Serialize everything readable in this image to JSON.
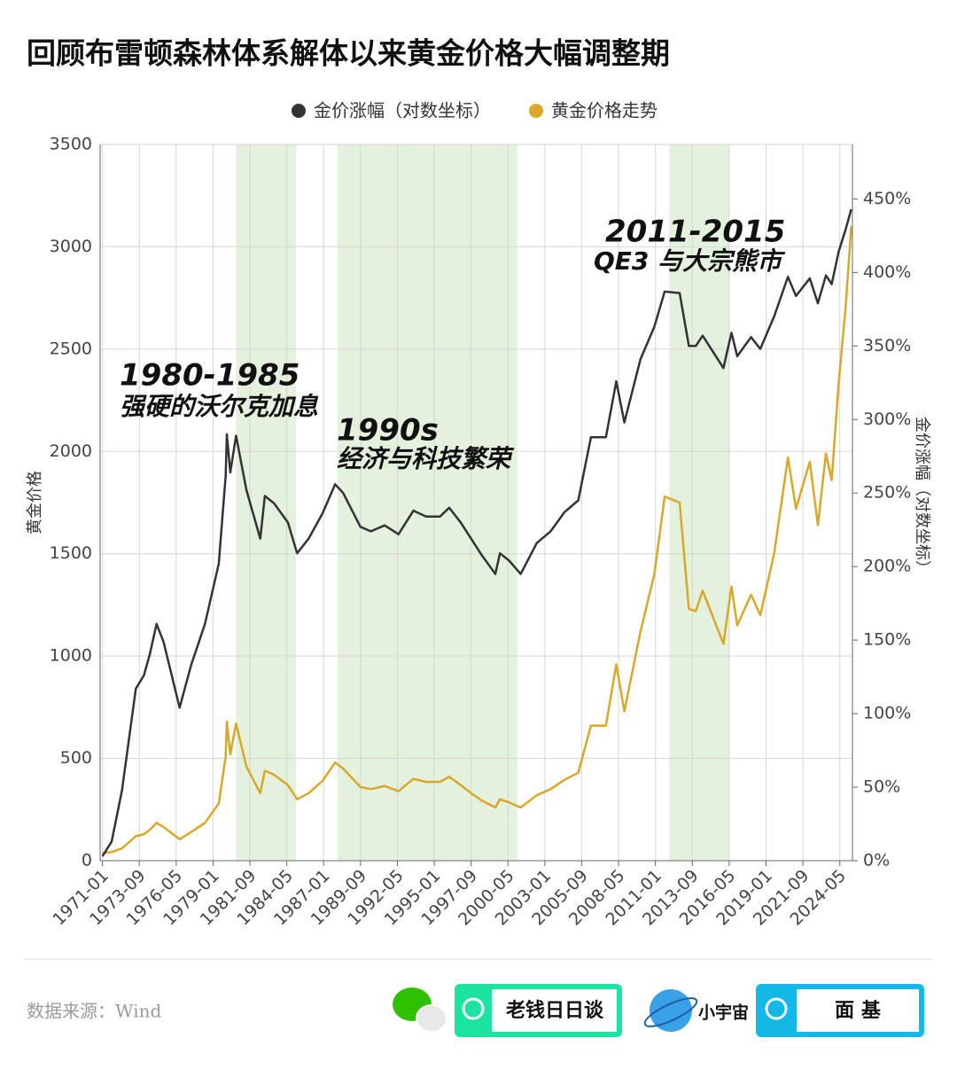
{
  "chart_data": {
    "type": "line",
    "title": "回顾布雷顿森林体系解体以来黄金价格大幅调整期",
    "ylabel": "黄金价格",
    "y2label": "金价涨幅（对数坐标）",
    "x": [
      "1971-01",
      "1971-09",
      "1972-06",
      "1973-06",
      "1974-01",
      "1974-06",
      "1974-12",
      "1975-06",
      "1976-08",
      "1977-06",
      "1978-06",
      "1979-06",
      "1979-12",
      "1980-01",
      "1980-04",
      "1980-09",
      "1981-06",
      "1982-06",
      "1982-10",
      "1983-06",
      "1984-06",
      "1985-02",
      "1985-12",
      "1986-12",
      "1987-11",
      "1988-06",
      "1989-09",
      "1990-06",
      "1991-06",
      "1992-06",
      "1993-07",
      "1994-06",
      "1995-06",
      "1996-02",
      "1996-12",
      "1997-09",
      "1998-06",
      "1999-06",
      "1999-10",
      "2000-06",
      "2001-04",
      "2002-06",
      "2003-06",
      "2004-06",
      "2005-06",
      "2006-05",
      "2007-06",
      "2008-03",
      "2008-10",
      "2009-12",
      "2010-12",
      "2011-09",
      "2012-10",
      "2013-06",
      "2013-12",
      "2014-06",
      "2015-12",
      "2016-07",
      "2016-12",
      "2017-12",
      "2018-08",
      "2019-08",
      "2020-08",
      "2021-03",
      "2022-03",
      "2022-10",
      "2023-05",
      "2023-10",
      "2024-04",
      "2024-10",
      "2025-03"
    ],
    "series": [
      {
        "name": "金价涨幅（对数坐标）",
        "color": "#333333",
        "axis": "y2",
        "values": [
          3,
          13,
          48,
          117,
          126,
          140,
          161,
          149,
          104,
          133,
          161,
          202,
          262,
          290,
          264,
          289,
          252,
          219,
          248,
          243,
          230,
          209,
          219,
          236,
          256,
          250,
          227,
          224,
          228,
          222,
          238,
          234,
          234,
          240,
          230,
          219,
          208,
          195,
          209,
          204,
          195,
          216,
          224,
          237,
          245,
          288,
          288,
          326,
          298,
          341,
          363,
          387,
          386,
          350,
          350,
          357,
          335,
          359,
          343,
          356,
          348,
          370,
          397,
          384,
          396,
          379,
          398,
          392,
          414,
          429,
          443
        ]
      },
      {
        "name": "黄金价格走势",
        "color": "#d9a82b",
        "values": [
          38,
          42,
          60,
          120,
          130,
          150,
          185,
          165,
          105,
          140,
          185,
          280,
          510,
          680,
          520,
          670,
          460,
          330,
          440,
          420,
          370,
          300,
          330,
          390,
          480,
          450,
          360,
          350,
          365,
          340,
          400,
          385,
          385,
          410,
          370,
          330,
          295,
          260,
          300,
          285,
          260,
          320,
          350,
          395,
          430,
          660,
          660,
          960,
          730,
          1120,
          1400,
          1780,
          1750,
          1230,
          1220,
          1320,
          1060,
          1340,
          1150,
          1300,
          1200,
          1500,
          1970,
          1720,
          1950,
          1640,
          1990,
          1860,
          2330,
          2700,
          3100
        ]
      }
    ],
    "xlim": [
      "1970-11",
      "2025-04"
    ],
    "xticks": [
      "1971-01",
      "1973-09",
      "1976-05",
      "1979-01",
      "1981-09",
      "1984-05",
      "1987-01",
      "1989-09",
      "1992-05",
      "1995-01",
      "1997-09",
      "2000-05",
      "2003-01",
      "2005-09",
      "2008-05",
      "2011-01",
      "2013-09",
      "2016-05",
      "2019-01",
      "2021-09",
      "2024-05"
    ],
    "ylim": [
      0,
      3500
    ],
    "yticks": [
      0,
      500,
      1000,
      1500,
      2000,
      2500,
      3000,
      3500
    ],
    "y2lim": [
      0,
      487
    ],
    "y2ticks": [
      {
        "value": 0,
        "label": "0%"
      },
      {
        "value": 50,
        "label": "50%"
      },
      {
        "value": 100,
        "label": "100%"
      },
      {
        "value": 150,
        "label": "150%"
      },
      {
        "value": 200,
        "label": "200%"
      },
      {
        "value": 250,
        "label": "250%"
      },
      {
        "value": 300,
        "label": "300%"
      },
      {
        "value": 350,
        "label": "350%"
      },
      {
        "value": 400,
        "label": "400%"
      },
      {
        "value": 450,
        "label": "450%"
      }
    ],
    "grid": true,
    "legend": "top",
    "shaded_periods": [
      [
        "1980-09",
        "1985-01"
      ],
      [
        "1988-01",
        "2001-01"
      ],
      [
        "2012-01",
        "2016-05"
      ]
    ],
    "shade_color": "#e3f1dd",
    "annotations": [
      {
        "title": "1980-1985",
        "text": "强硬的沃尔克加息"
      },
      {
        "title": "1990s",
        "text": "经济与科技繁荣"
      },
      {
        "title": "2011-2015",
        "text": "QE3 与大宗熊市"
      }
    ]
  },
  "footer": {
    "source": "数据来源：Wind",
    "brand1": "老钱日日谈",
    "brand2": "小宇宙",
    "brand3": "面 基"
  }
}
